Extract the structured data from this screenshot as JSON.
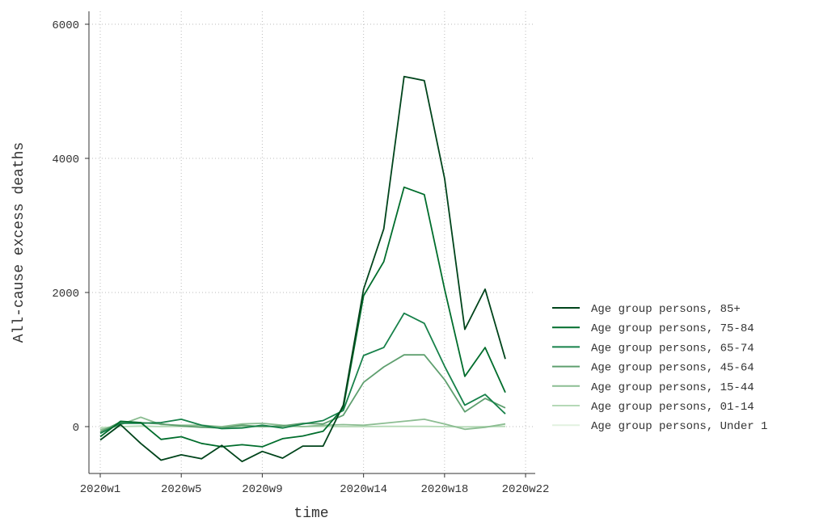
{
  "chart_data": {
    "type": "line",
    "title": "",
    "xlabel": "time",
    "ylabel": "All-cause excess deaths",
    "x": [
      "2020w1",
      "2020w2",
      "2020w3",
      "2020w4",
      "2020w5",
      "2020w6",
      "2020w7",
      "2020w8",
      "2020w9",
      "2020w10",
      "2020w11",
      "2020w12",
      "2020w13",
      "2020w14",
      "2020w15",
      "2020w16",
      "2020w17",
      "2020w18",
      "2020w19",
      "2020w20",
      "2020w21"
    ],
    "xticks": [
      "2020w1",
      "2020w5",
      "2020w9",
      "2020w14",
      "2020w18",
      "2020w22"
    ],
    "yticks": [
      0,
      2000,
      4000,
      6000
    ],
    "ylim": [
      -700,
      6200
    ],
    "grid": true,
    "legend_position": "right",
    "series": [
      {
        "name": "Age group persons, 85+",
        "color": "#00441b",
        "values": [
          -200,
          30,
          -250,
          -500,
          -420,
          -480,
          -280,
          -520,
          -370,
          -470,
          -290,
          -290,
          320,
          2050,
          2950,
          5220,
          5160,
          3700,
          1450,
          2050,
          1010
        ]
      },
      {
        "name": "Age group persons, 75-84",
        "color": "#006d2c",
        "values": [
          -150,
          80,
          60,
          -190,
          -150,
          -250,
          -300,
          -270,
          -300,
          -180,
          -140,
          -70,
          280,
          1950,
          2460,
          3570,
          3460,
          2050,
          750,
          1180,
          510
        ]
      },
      {
        "name": "Age group persons, 65-74",
        "color": "#17814a",
        "values": [
          -100,
          50,
          50,
          60,
          110,
          20,
          -30,
          -20,
          20,
          -20,
          40,
          90,
          240,
          1060,
          1180,
          1690,
          1540,
          900,
          320,
          480,
          190
        ]
      },
      {
        "name": "Age group persons, 45-64",
        "color": "#5f9f6f",
        "values": [
          -80,
          70,
          60,
          40,
          10,
          -10,
          -20,
          20,
          0,
          10,
          50,
          40,
          170,
          660,
          890,
          1070,
          1070,
          700,
          220,
          420,
          280
        ]
      },
      {
        "name": "Age group persons, 15-44",
        "color": "#8cbd92",
        "values": [
          -50,
          30,
          140,
          30,
          20,
          20,
          0,
          40,
          50,
          20,
          0,
          20,
          30,
          20,
          50,
          80,
          110,
          40,
          -40,
          -10,
          40
        ]
      },
      {
        "name": "Age group persons, 01-14",
        "color": "#b5d9b7",
        "values": [
          -20,
          0,
          10,
          0,
          5,
          0,
          -5,
          0,
          0,
          5,
          0,
          5,
          0,
          0,
          5,
          5,
          5,
          0,
          -5,
          0,
          5
        ]
      },
      {
        "name": "Age group persons, Under 1",
        "color": "#e2f2e0",
        "values": [
          -10,
          0,
          0,
          0,
          0,
          0,
          0,
          0,
          0,
          0,
          0,
          0,
          0,
          0,
          0,
          0,
          0,
          0,
          0,
          0,
          0
        ]
      }
    ]
  }
}
